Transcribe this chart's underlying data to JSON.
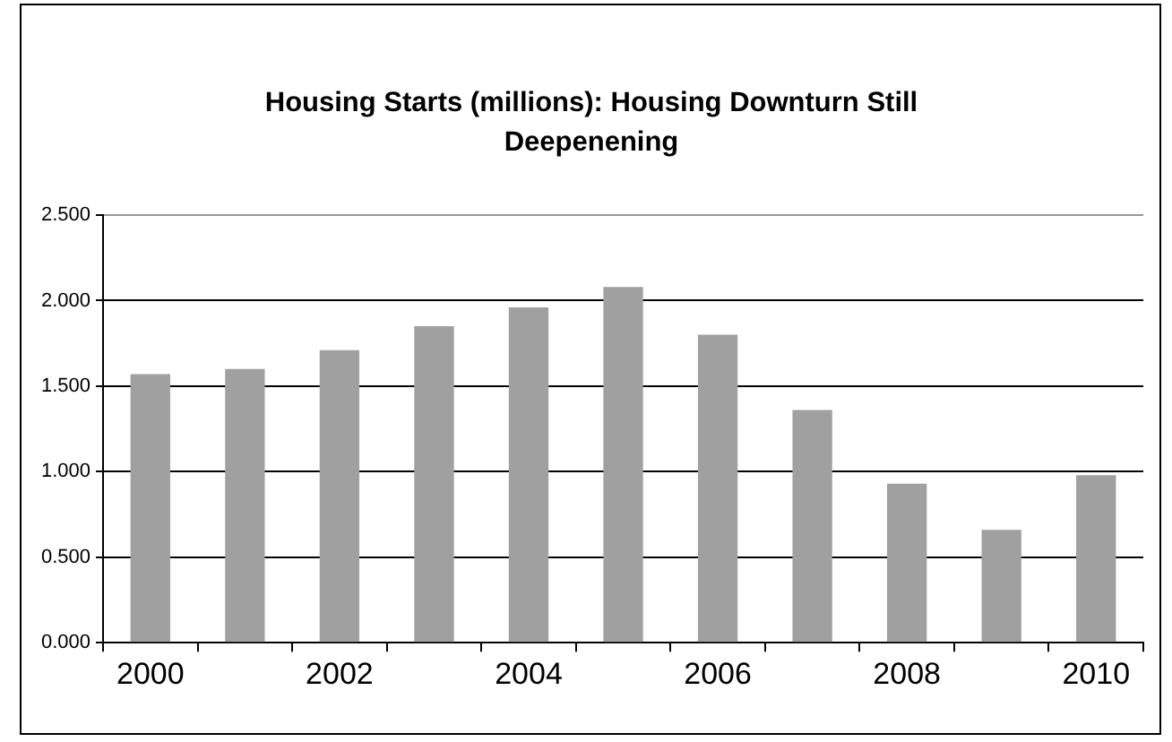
{
  "chart_data": {
    "type": "bar",
    "title": "Housing Starts (millions): Housing Downturn Still Deepenening",
    "categories": [
      "2000",
      null,
      "2002",
      null,
      "2004",
      null,
      "2006",
      null,
      "2008",
      null,
      "2010"
    ],
    "values": [
      1.57,
      1.6,
      1.71,
      1.85,
      1.96,
      2.08,
      1.8,
      1.36,
      0.93,
      0.66,
      0.98
    ],
    "color": "#a0a0a0",
    "ylim": [
      0,
      2.5
    ],
    "yticks": [
      {
        "value": 0,
        "label": "0.000"
      },
      {
        "value": 0.5,
        "label": "0.500"
      },
      {
        "value": 1,
        "label": "1.000"
      },
      {
        "value": 1.5,
        "label": "1.500"
      },
      {
        "value": 2,
        "label": "2.000"
      },
      {
        "value": 2.5,
        "label": "2.500"
      }
    ],
    "grid": "y"
  }
}
